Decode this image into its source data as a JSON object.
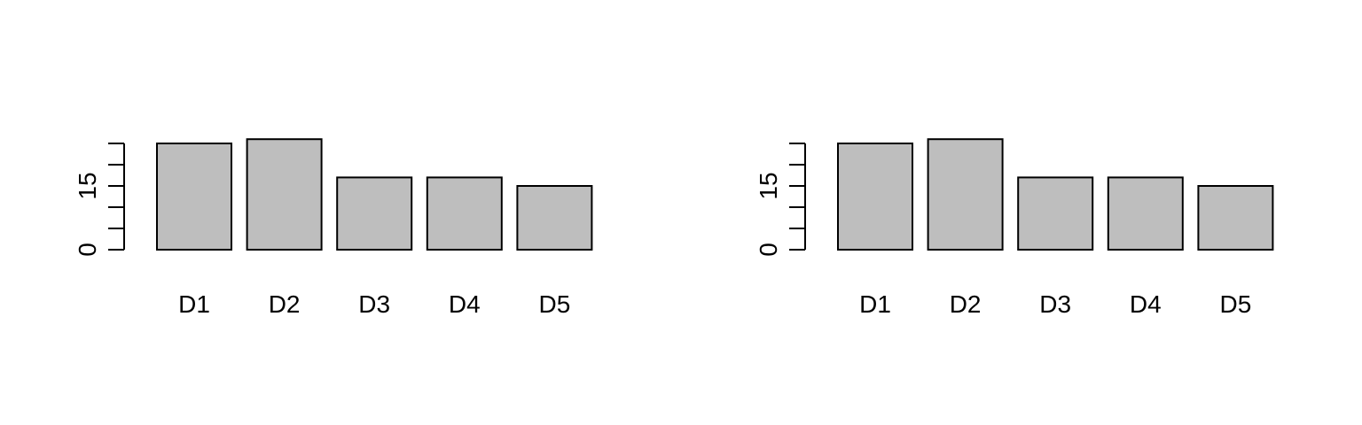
{
  "colors": {
    "bar_fill": "#bebebe",
    "stroke": "#000000",
    "background": "#ffffff"
  },
  "chart_data": [
    {
      "type": "bar",
      "categories": [
        "D1",
        "D2",
        "D3",
        "D4",
        "D5"
      ],
      "values": [
        25,
        26,
        17,
        17,
        15
      ],
      "ylim": [
        0,
        25
      ],
      "yticks": [
        0,
        5,
        10,
        15,
        20,
        25
      ],
      "ytick_labels": [
        "0",
        "",
        "",
        "15",
        "",
        ""
      ],
      "grid": false,
      "title": "",
      "xlabel": "",
      "ylabel": ""
    },
    {
      "type": "bar",
      "categories": [
        "D1",
        "D2",
        "D3",
        "D4",
        "D5"
      ],
      "values": [
        25,
        26,
        17,
        17,
        15
      ],
      "ylim": [
        0,
        25
      ],
      "yticks": [
        0,
        5,
        10,
        15,
        20,
        25
      ],
      "ytick_labels": [
        "0",
        "",
        "",
        "15",
        "",
        ""
      ],
      "grid": false,
      "title": "",
      "xlabel": "",
      "ylabel": ""
    }
  ]
}
